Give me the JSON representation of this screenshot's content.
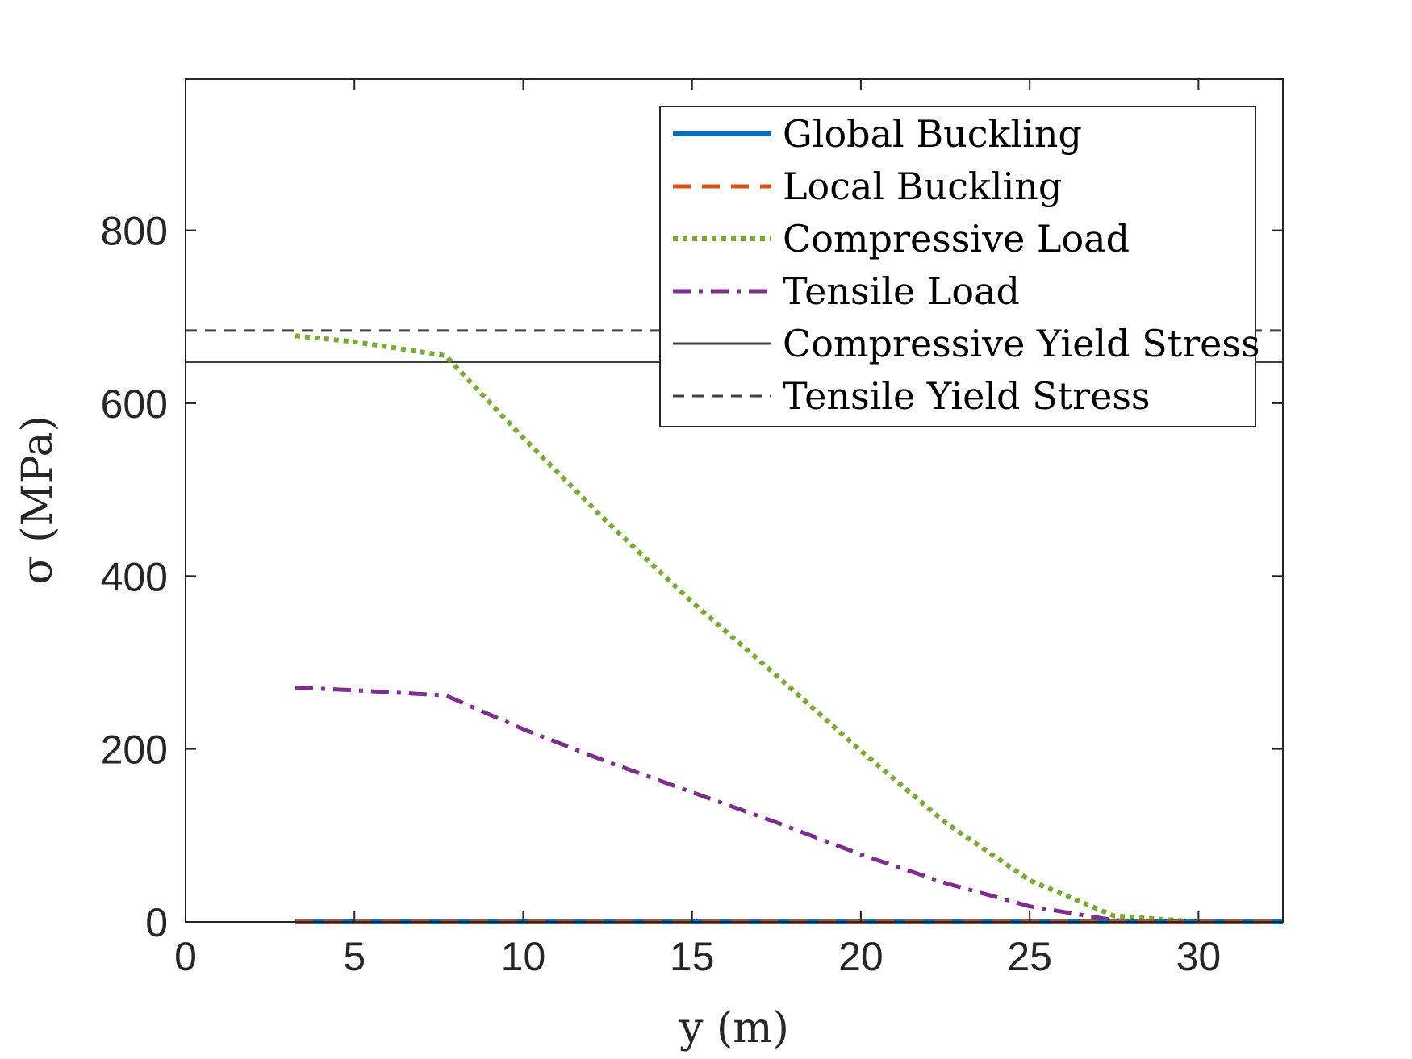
{
  "chart_data": {
    "type": "line",
    "xlabel": "y (m)",
    "ylabel": "σ (MPa)",
    "xlim": [
      0,
      32.5
    ],
    "ylim": [
      0,
      975
    ],
    "xticks": [
      0,
      5,
      10,
      15,
      20,
      25,
      30
    ],
    "yticks": [
      0,
      200,
      400,
      600,
      800
    ],
    "grid": false,
    "legend_position": "top-right",
    "series": [
      {
        "name": "Global Buckling",
        "color": "#0072BD",
        "style": "solid",
        "x": [
          3.25,
          32.5
        ],
        "y": [
          0,
          0
        ]
      },
      {
        "name": "Local Buckling",
        "color": "#D95319",
        "style": "dashed",
        "x": [
          3.25,
          32.5
        ],
        "y": [
          0,
          0
        ]
      },
      {
        "name": "Compressive Load",
        "color": "#77AC30",
        "style": "dotted",
        "x": [
          3.25,
          5,
          7.7,
          10,
          12.5,
          15,
          17.5,
          20,
          22.5,
          25,
          27.5,
          30,
          32.5
        ],
        "y": [
          678,
          671,
          655,
          560,
          462,
          370,
          285,
          198,
          115,
          48,
          7,
          0,
          0
        ]
      },
      {
        "name": "Tensile Load",
        "color": "#7E2F8E",
        "style": "dashdot",
        "x": [
          3.25,
          5,
          7.7,
          10,
          12.5,
          15,
          17.5,
          20,
          22.5,
          25,
          27.5,
          30,
          32.5
        ],
        "y": [
          271,
          268,
          262,
          223,
          185,
          150,
          115,
          78,
          45,
          18,
          2,
          0,
          0
        ]
      },
      {
        "name": "Compressive Yield Stress",
        "color": "#404040",
        "style": "solid-thin",
        "x": [
          0,
          32.5
        ],
        "y": [
          648,
          648
        ]
      },
      {
        "name": "Tensile Yield Stress",
        "color": "#404040",
        "style": "dashed-thin",
        "x": [
          0,
          32.5
        ],
        "y": [
          684,
          684
        ]
      }
    ]
  }
}
